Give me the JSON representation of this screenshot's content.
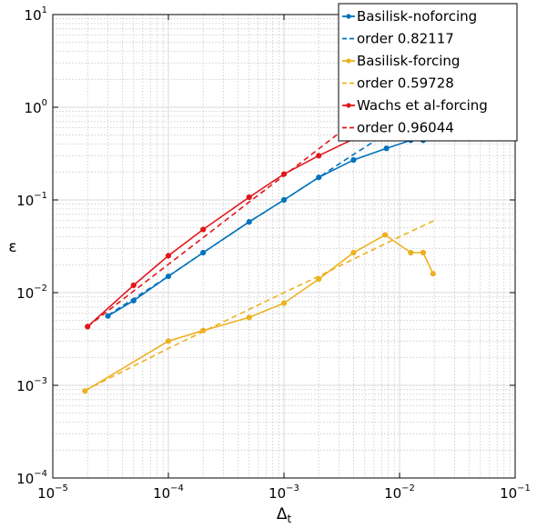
{
  "chart_data": {
    "type": "line",
    "xscale": "log",
    "yscale": "log",
    "xlim": [
      1e-05,
      0.1
    ],
    "ylim": [
      0.0001,
      10
    ],
    "xlabel": "Δ",
    "xlabel_sub": "t",
    "ylabel": "ε",
    "grid": true,
    "legend_position": "top-right",
    "x_ticks": [
      {
        "base": "10",
        "exp": "−5",
        "value": 1e-05
      },
      {
        "base": "10",
        "exp": "−4",
        "value": 0.0001
      },
      {
        "base": "10",
        "exp": "−3",
        "value": 0.001
      },
      {
        "base": "10",
        "exp": "−2",
        "value": 0.01
      },
      {
        "base": "10",
        "exp": "−1",
        "value": 0.1
      }
    ],
    "y_ticks": [
      {
        "base": "10",
        "exp": "−4",
        "value": 0.0001
      },
      {
        "base": "10",
        "exp": "−3",
        "value": 0.001
      },
      {
        "base": "10",
        "exp": "−2",
        "value": 0.01
      },
      {
        "base": "10",
        "exp": "−1",
        "value": 0.1
      },
      {
        "base": "10",
        "exp": "0",
        "value": 1
      },
      {
        "base": "10",
        "exp": "1",
        "value": 10
      }
    ],
    "series": [
      {
        "name": "Basilisk-noforcing",
        "color": "#0072bd",
        "style": "solid-marker",
        "x": [
          3e-05,
          5e-05,
          0.0001,
          0.0002,
          0.0005,
          0.001,
          0.002,
          0.004,
          0.0077,
          0.0125,
          0.016
        ],
        "y": [
          0.0056,
          0.0082,
          0.015,
          0.027,
          0.058,
          0.1,
          0.175,
          0.27,
          0.36,
          0.44,
          0.44
        ]
      },
      {
        "name": "order 0.82117",
        "color": "#0072bd",
        "style": "dashed",
        "x": [
          3e-05,
          5e-05,
          0.0001,
          0.0002,
          0.0005,
          0.001,
          0.002,
          0.004,
          0.0077
        ],
        "y": [
          0.0057,
          0.0086,
          0.015,
          0.027,
          0.058,
          0.1,
          0.175,
          0.31,
          0.52
        ]
      },
      {
        "name": "Basilisk-forcing",
        "color": "#edb120",
        "style": "solid-marker",
        "x": [
          1.9e-05,
          0.0001,
          0.0002,
          0.0005,
          0.001,
          0.002,
          0.004,
          0.0075,
          0.0125,
          0.016,
          0.0195
        ],
        "y": [
          0.00087,
          0.003,
          0.0039,
          0.0054,
          0.0077,
          0.014,
          0.027,
          0.042,
          0.027,
          0.027,
          0.016
        ]
      },
      {
        "name": "order 0.59728",
        "color": "#edb120",
        "style": "dashed",
        "x": [
          1.9e-05,
          0.0001,
          0.0002,
          0.0005,
          0.001,
          0.002,
          0.004,
          0.01,
          0.02
        ],
        "y": [
          0.00088,
          0.0025,
          0.0038,
          0.0066,
          0.01,
          0.015,
          0.023,
          0.04,
          0.06
        ]
      },
      {
        "name": "Wachs et al-forcing",
        "color": "#e3161b",
        "style": "solid-marker",
        "x": [
          2e-05,
          5e-05,
          0.0001,
          0.0002,
          0.0005,
          0.001,
          0.002,
          0.005
        ],
        "y": [
          0.0043,
          0.012,
          0.025,
          0.048,
          0.107,
          0.19,
          0.3,
          0.52
        ]
      },
      {
        "name": "order 0.96044",
        "color": "#e3161b",
        "style": "dashed",
        "x": [
          2e-05,
          5e-05,
          0.0001,
          0.0002,
          0.0005,
          0.001,
          0.002,
          0.0045
        ],
        "y": [
          0.0043,
          0.0104,
          0.0202,
          0.0392,
          0.095,
          0.183,
          0.356,
          0.78
        ]
      }
    ],
    "legend": [
      {
        "label": "Basilisk-noforcing",
        "color": "#0072bd",
        "style": "solid-marker"
      },
      {
        "label": "order 0.82117",
        "color": "#0072bd",
        "style": "dashed"
      },
      {
        "label": "Basilisk-forcing",
        "color": "#edb120",
        "style": "solid-marker"
      },
      {
        "label": "order 0.59728",
        "color": "#edb120",
        "style": "dashed"
      },
      {
        "label": "Wachs et al-forcing",
        "color": "#e3161b",
        "style": "solid-marker"
      },
      {
        "label": "order 0.96044",
        "color": "#e3161b",
        "style": "dashed"
      }
    ]
  }
}
